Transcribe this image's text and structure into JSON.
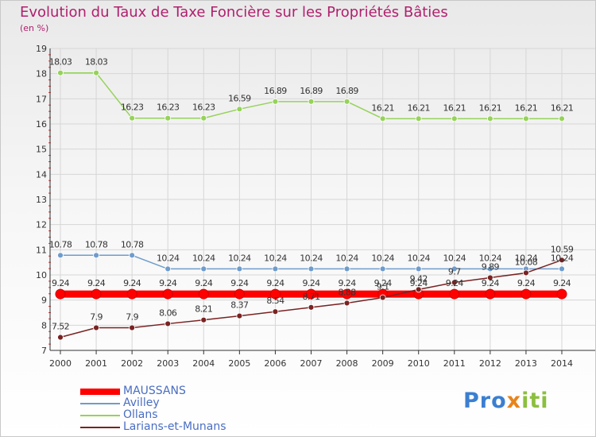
{
  "header": {
    "title": "Evolution du Taux de Taxe Foncière sur les Propriétés Bâties",
    "subtitle": "(en %)"
  },
  "logo": {
    "part1": "Pro",
    "part2": "x",
    "part3": "iti"
  },
  "chart_data": {
    "type": "line",
    "title": "Evolution du Taux de Taxe Foncière sur les Propriétés Bâties",
    "ylabel": "(en %)",
    "xlabel": "",
    "ylim": [
      7,
      19
    ],
    "yticks": [
      "7",
      "8",
      "9",
      "10",
      "11",
      "12",
      "13",
      "14",
      "15",
      "16",
      "17",
      "18",
      "19"
    ],
    "x": [
      "2000",
      "2001",
      "2002",
      "2003",
      "2004",
      "2005",
      "2006",
      "2007",
      "2008",
      "2009",
      "2010",
      "2011",
      "2012",
      "2013",
      "2014"
    ],
    "legend_position": "bottom-left",
    "series": [
      {
        "name": "MAUSSANS",
        "color": "#ff0000",
        "style": "thick",
        "values": [
          9.24,
          9.24,
          9.24,
          9.24,
          9.24,
          9.24,
          9.24,
          9.24,
          9.24,
          9.24,
          9.24,
          9.24,
          9.24,
          9.24,
          9.24
        ],
        "labels": [
          "9.24",
          "9.24",
          "9.24",
          "9.24",
          "9.24",
          "9.24",
          "9.24",
          "9.24",
          "9.24",
          "9.24",
          "9.24",
          "9.24",
          "9.24",
          "9.24",
          "9.24"
        ]
      },
      {
        "name": "Avilley",
        "color": "#6e9ccc",
        "style": "normal",
        "values": [
          10.78,
          10.78,
          10.78,
          10.24,
          10.24,
          10.24,
          10.24,
          10.24,
          10.24,
          10.24,
          10.24,
          10.24,
          10.24,
          10.24,
          10.24
        ],
        "labels": [
          "10.78",
          "10.78",
          "10.78",
          "10.24",
          "10.24",
          "10.24",
          "10.24",
          "10.24",
          "10.24",
          "10.24",
          "10.24",
          "10.24",
          "10.24",
          "10.24",
          "10.24"
        ]
      },
      {
        "name": "Ollans",
        "color": "#96d25a",
        "style": "normal",
        "values": [
          18.03,
          18.03,
          16.23,
          16.23,
          16.23,
          16.59,
          16.89,
          16.89,
          16.89,
          16.21,
          16.21,
          16.21,
          16.21,
          16.21,
          16.21
        ],
        "labels": [
          "18.03",
          "18.03",
          "16.23",
          "16.23",
          "16.23",
          "16.59",
          "16.89",
          "16.89",
          "16.89",
          "16.21",
          "16.21",
          "16.21",
          "16.21",
          "16.21",
          "16.21"
        ]
      },
      {
        "name": "Larians-et-Munans",
        "color": "#7a2222",
        "style": "normal",
        "values": [
          7.52,
          7.9,
          7.9,
          8.06,
          8.21,
          8.37,
          8.54,
          8.71,
          8.88,
          9.1,
          9.42,
          9.7,
          9.89,
          10.08,
          10.59
        ],
        "labels": [
          "7.52",
          "7.9",
          "7.9",
          "8.06",
          "8.21",
          "8.37",
          "8.54",
          "8.71",
          "8.88",
          "9.1",
          "9.42",
          "9.7",
          "9.89",
          "10.08",
          "10.59"
        ]
      }
    ]
  }
}
